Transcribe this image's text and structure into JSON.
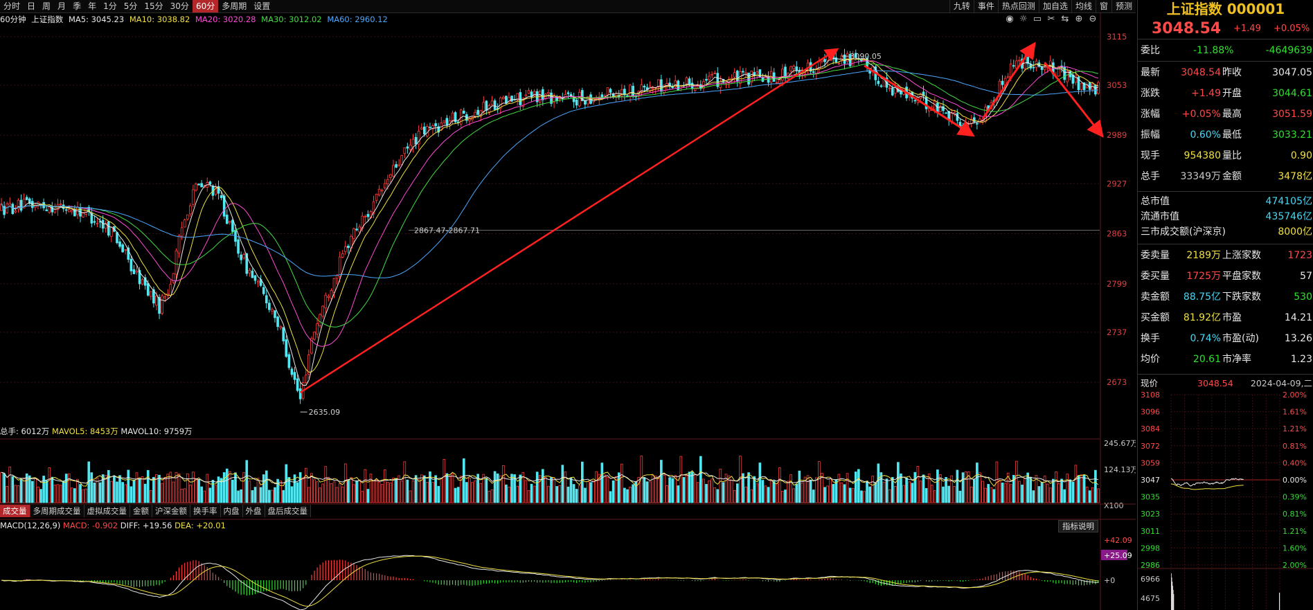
{
  "toolbar": {
    "left": [
      "分时",
      "日",
      "周",
      "月",
      "季",
      "年",
      "1分",
      "5分",
      "15分",
      "30分",
      "60分",
      "多周期",
      "设置"
    ],
    "active": "60分",
    "right": [
      "九转",
      "事件",
      "热点回测",
      "加自选",
      "均线",
      "窗",
      "预测"
    ]
  },
  "ma_bar": {
    "period": "60分钟",
    "name": "上证指数",
    "ma5": "MA5: 3045.23",
    "ma10": "MA10: 3038.82",
    "ma20": "MA20: 3020.28",
    "ma30": "MA30: 3012.02",
    "ma60": "MA60: 2960.12"
  },
  "icons": [
    "eye-icon",
    "brightness-icon",
    "window-icon",
    "scissors-icon",
    "compare-icon",
    "zoom-in-icon",
    "zoom-out-icon"
  ],
  "vol_header": {
    "total": "总手: 6012万",
    "mavol5": "MAVOL5: 8453万",
    "mavol10": "MAVOL10: 9759万"
  },
  "vol_tabs": [
    "成交量",
    "多周期成交量",
    "虚拟成交量",
    "金额",
    "沪深金额",
    "换手率",
    "内盘",
    "外盘",
    "盘后成交量"
  ],
  "macd_header": {
    "name": "MACD(12,26,9)",
    "macd": "MACD: -0.902",
    "diff": "DIFF: +19.56",
    "dea": "DEA: +20.01"
  },
  "indicator_button": "指标说明",
  "colors": {
    "up": "#ff3b3b",
    "down": "#52e6f0",
    "ma5": "#e8e8e8",
    "ma10": "#f0e040",
    "ma20": "#ff4ad8",
    "ma30": "#44dd44",
    "ma60": "#4aa8ff",
    "arrow": "#ff2020"
  },
  "chart_data": {
    "type": "candlestick",
    "y_ticks": [
      "3115",
      "3053",
      "2989",
      "2927",
      "2863",
      "2799",
      "2737",
      "2673"
    ],
    "ylim": [
      2620,
      3130
    ],
    "annotations": {
      "low": "2635.09",
      "high": "3090.05",
      "midline": "2867.47-2867.71"
    },
    "price_path": [
      [
        0,
        2895
      ],
      [
        10,
        2900
      ],
      [
        20,
        2898
      ],
      [
        30,
        2890
      ],
      [
        40,
        2865
      ],
      [
        46,
        2820
      ],
      [
        52,
        2790
      ],
      [
        56,
        2770
      ],
      [
        60,
        2800
      ],
      [
        64,
        2870
      ],
      [
        68,
        2920
      ],
      [
        74,
        2925
      ],
      [
        78,
        2905
      ],
      [
        82,
        2860
      ],
      [
        87,
        2820
      ],
      [
        92,
        2790
      ],
      [
        97,
        2760
      ],
      [
        102,
        2700
      ],
      [
        106,
        2650
      ],
      [
        110,
        2730
      ],
      [
        116,
        2790
      ],
      [
        124,
        2860
      ],
      [
        132,
        2900
      ],
      [
        140,
        2950
      ],
      [
        148,
        2990
      ],
      [
        160,
        3010
      ],
      [
        175,
        3030
      ],
      [
        190,
        3040
      ],
      [
        205,
        3035
      ],
      [
        220,
        3045
      ],
      [
        240,
        3055
      ],
      [
        255,
        3060
      ],
      [
        275,
        3065
      ],
      [
        290,
        3080
      ],
      [
        298,
        3090
      ],
      [
        305,
        3080
      ],
      [
        315,
        3050
      ],
      [
        325,
        3035
      ],
      [
        335,
        3020
      ],
      [
        342,
        3000
      ],
      [
        348,
        3015
      ],
      [
        352,
        3035
      ],
      [
        358,
        3080
      ],
      [
        364,
        3085
      ],
      [
        372,
        3075
      ],
      [
        380,
        3060
      ],
      [
        386,
        3048
      ]
    ],
    "volume": {
      "axis_ticks": [
        "245.67万",
        "124.13万",
        "X100"
      ]
    },
    "macd": {
      "axis_ticks": [
        "+42.09",
        "+25.09",
        "+0"
      ]
    },
    "mini": {
      "y_left": [
        "3108",
        "3096",
        "3084",
        "3072",
        "3059",
        "3047",
        "3035",
        "3023",
        "3011",
        "2998",
        "2986"
      ],
      "y_right": [
        "2.00%",
        "1.61%",
        "1.21%",
        "0.81%",
        "0.40%",
        "0.00%",
        "0.39%",
        "0.81%",
        "1.21%",
        "1.60%",
        "2.00%"
      ],
      "vol_ticks": [
        "6966",
        "4675"
      ]
    }
  },
  "panel": {
    "title": "上证指数 000001",
    "price": "3048.54",
    "change": "+1.49",
    "pct": "+0.05%",
    "weibi": {
      "label": "委比",
      "v1": "-11.88%",
      "v2": "-4649639"
    },
    "rows_a": [
      {
        "l1": "最新",
        "v1": "3048.54",
        "c1": "red",
        "l2": "昨收",
        "v2": "3047.05",
        "c2": "white"
      },
      {
        "l1": "涨跌",
        "v1": "+1.49",
        "c1": "red",
        "l2": "开盘",
        "v2": "3044.61",
        "c2": "green"
      },
      {
        "l1": "涨幅",
        "v1": "+0.05%",
        "c1": "red",
        "l2": "最高",
        "v2": "3051.59",
        "c2": "red"
      },
      {
        "l1": "振幅",
        "v1": "0.60%",
        "c1": "cyan",
        "l2": "最低",
        "v2": "3033.21",
        "c2": "green"
      },
      {
        "l1": "现手",
        "v1": "954380",
        "c1": "yellow",
        "l2": "量比",
        "v2": "0.90",
        "c2": "yellow"
      },
      {
        "l1": "总手",
        "v1": "33349万",
        "c1": "grey",
        "l2": "金额",
        "v2": "3478亿",
        "c2": "yellow"
      }
    ],
    "rows_b": [
      {
        "l1": "总市值",
        "v1": "474105亿",
        "c1": "cyan"
      },
      {
        "l1": "流通市值",
        "v1": "435746亿",
        "c1": "cyan"
      },
      {
        "l1": "三市成交额(沪深京)",
        "v1": "8000亿",
        "c1": "yellow"
      }
    ],
    "rows_c": [
      {
        "l1": "委卖量",
        "v1": "2189万",
        "c1": "yellow",
        "l2": "上涨家数",
        "v2": "1723",
        "c2": "red"
      },
      {
        "l1": "委买量",
        "v1": "1725万",
        "c1": "red",
        "l2": "平盘家数",
        "v2": "57",
        "c2": "white"
      },
      {
        "l1": "卖金额",
        "v1": "88.75亿",
        "c1": "cyan",
        "l2": "下跌家数",
        "v2": "530",
        "c2": "green"
      },
      {
        "l1": "买金额",
        "v1": "81.92亿",
        "c1": "yellow",
        "l2": "市盈",
        "v2": "14.21",
        "c2": "white"
      },
      {
        "l1": "换手",
        "v1": "0.74%",
        "c1": "cyan",
        "l2": "市盈(动)",
        "v2": "13.26",
        "c2": "white"
      },
      {
        "l1": "均价",
        "v1": "20.61",
        "c1": "green",
        "l2": "市净率",
        "v2": "1.23",
        "c2": "white"
      }
    ],
    "mini_header": {
      "label": "现价",
      "price": "3048.54",
      "date": "2024-04-09,二"
    }
  }
}
